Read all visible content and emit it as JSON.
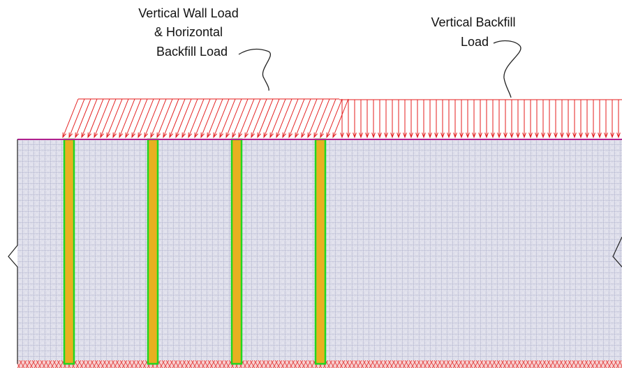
{
  "labels": [
    {
      "lines": [
        "Vertical Wall Load",
        "& Horizontal",
        "Backfill Load"
      ]
    },
    {
      "lines": [
        "Vertical Backfill",
        "Load"
      ]
    }
  ]
}
